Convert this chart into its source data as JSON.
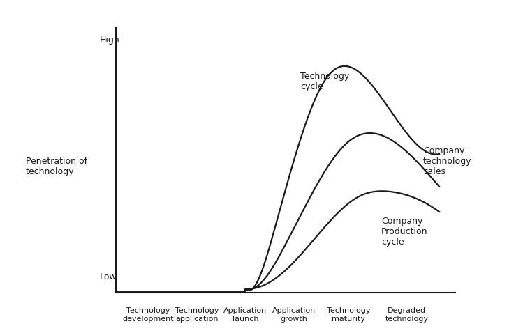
{
  "ylabel_high": "High",
  "ylabel_low": "Low",
  "ylabel": "Penetration of\ntechnology",
  "xlabel_labels_line1": [
    "Technology",
    "Technology",
    "Application",
    "Application",
    "Technology",
    "Degraded"
  ],
  "xlabel_labels_line2": [
    "development",
    "application",
    "launch",
    "growth",
    "maturity",
    "technology"
  ],
  "curve_labels": [
    "Technology\ncycle",
    "Company\ntechnology\nsales",
    "Company\nProduction\ncycle"
  ],
  "line_color": "#1a1a1a",
  "bg_color": "#ffffff",
  "font_size": 9,
  "label_font_size": 8
}
